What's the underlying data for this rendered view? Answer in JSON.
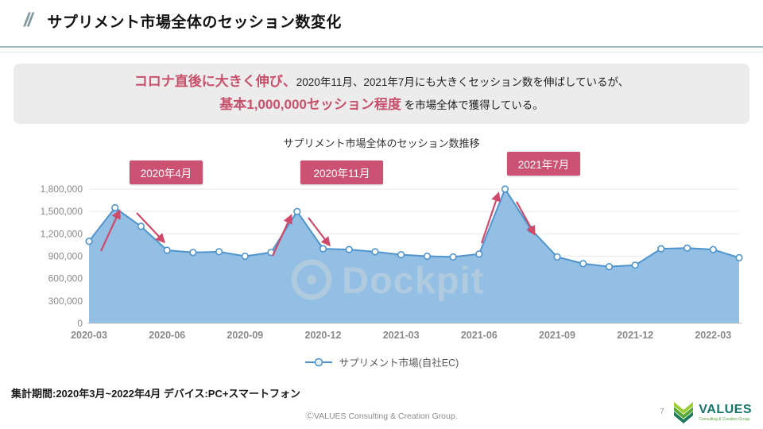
{
  "header": {
    "slashes": "//",
    "title": "サプリメント市場全体のセッション数変化"
  },
  "summary": {
    "em_color": "#c8506a",
    "line1_em": "コロナ直後に大きく伸び、",
    "line1_rest": "2020年11月、2021年7月にも大きくセッション数を伸ばしているが、",
    "line2_em": "基本1,000,000セッション程度",
    "line2_rest": " を市場全体で獲得している。"
  },
  "chart_data": {
    "type": "area",
    "title": "サプリメント市場全体のセッション数推移",
    "x": [
      "2020-03",
      "2020-04",
      "2020-05",
      "2020-06",
      "2020-07",
      "2020-08",
      "2020-09",
      "2020-10",
      "2020-11",
      "2020-12",
      "2021-01",
      "2021-02",
      "2021-03",
      "2021-04",
      "2021-05",
      "2021-06",
      "2021-07",
      "2021-08",
      "2021-09",
      "2021-10",
      "2021-11",
      "2021-12",
      "2022-01",
      "2022-02",
      "2022-03",
      "2022-04"
    ],
    "values": [
      1100000,
      1550000,
      1300000,
      980000,
      950000,
      960000,
      900000,
      950000,
      1500000,
      1000000,
      990000,
      960000,
      920000,
      900000,
      890000,
      930000,
      1800000,
      1260000,
      890000,
      800000,
      760000,
      780000,
      1000000,
      1010000,
      990000,
      880000
    ],
    "x_tick_indices": [
      0,
      3,
      6,
      9,
      12,
      15,
      18,
      21,
      24
    ],
    "y_ticks": [
      0,
      300000,
      600000,
      900000,
      1200000,
      1500000,
      1800000
    ],
    "ylim": [
      0,
      1800000
    ],
    "legend": "サプリメント市場(自社EC)",
    "series_color": "#4f94cd",
    "series_fill": "#8cbce2",
    "arrow_color": "#cf4a6a",
    "annotation_color": "#cc5273",
    "watermark": "Dockpit",
    "annotations": [
      {
        "label": "2020年4月"
      },
      {
        "label": "2020年11月"
      },
      {
        "label": "2021年7月"
      }
    ]
  },
  "footer": {
    "period": "集計期間:2020年3月~2022年4月 デバイス:PC+スマートフォン",
    "copyright": "ⒸVALUES Consulting & Creation Group.",
    "page_number": "7",
    "logo_text": "VALUES",
    "logo_subtext": "Consulting & Creation Group"
  }
}
